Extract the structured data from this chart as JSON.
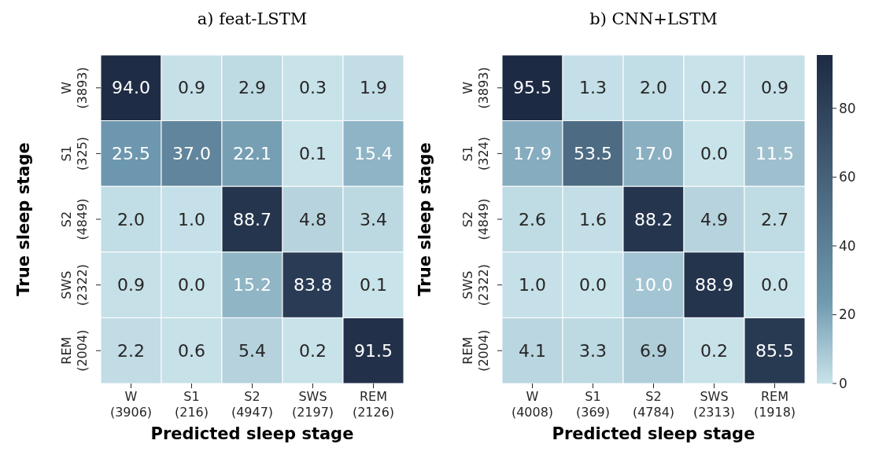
{
  "chart_data": [
    {
      "type": "heatmap",
      "title": "a) feat-LSTM",
      "xlabel": "Predicted sleep stage",
      "ylabel": "True sleep stage",
      "categories": [
        "W\n(3906)",
        "S1\n(216)",
        "S2\n(4947)",
        "SWS\n(2197)",
        "REM\n(2126)"
      ],
      "y_categories": [
        "W\n(3893)",
        "S1\n(325)",
        "S2\n(4849)",
        "SWS\n(2322)",
        "REM\n(2004)"
      ],
      "cells": [
        [
          94.0,
          0.9,
          2.9,
          0.3,
          1.9
        ],
        [
          25.5,
          37.0,
          22.1,
          0.1,
          15.4
        ],
        [
          2.0,
          1.0,
          88.7,
          4.8,
          3.4
        ],
        [
          0.9,
          0.0,
          15.2,
          83.8,
          0.1
        ],
        [
          2.2,
          0.6,
          5.4,
          0.2,
          91.5
        ]
      ],
      "cell_labels": [
        [
          "94.0",
          "0.9",
          "2.9",
          "0.3",
          "1.9"
        ],
        [
          "25.5",
          "37.0",
          "22.1",
          "0.1",
          "15.4"
        ],
        [
          "2.0",
          "1.0",
          "88.7",
          "4.8",
          "3.4"
        ],
        [
          "0.9",
          "0.0",
          "15.2",
          "83.8",
          "0.1"
        ],
        [
          "2.2",
          "0.6",
          "5.4",
          "0.2",
          "91.5"
        ]
      ],
      "data_labels": true
    },
    {
      "type": "heatmap",
      "title": "b) CNN+LSTM",
      "xlabel": "Predicted sleep stage",
      "ylabel": "True sleep stage",
      "categories": [
        "W\n(4008)",
        "S1\n(369)",
        "S2\n(4784)",
        "SWS\n(2313)",
        "REM\n(1918)"
      ],
      "y_categories": [
        "W\n(3893)",
        "S1\n(324)",
        "S2\n(4849)",
        "SWS\n(2322)",
        "REM\n(2004)"
      ],
      "cells": [
        [
          95.5,
          1.3,
          2.0,
          0.2,
          0.9
        ],
        [
          17.9,
          53.5,
          17.0,
          0.0,
          11.5
        ],
        [
          2.6,
          1.6,
          88.2,
          4.9,
          2.7
        ],
        [
          1.0,
          0.0,
          10.0,
          88.9,
          0.0
        ],
        [
          4.1,
          3.3,
          6.9,
          0.2,
          85.5
        ]
      ],
      "cell_labels": [
        [
          "95.5",
          "1.3",
          "2.0",
          "0.2",
          "0.9"
        ],
        [
          "17.9",
          "53.5",
          "17.0",
          "0.0",
          "11.5"
        ],
        [
          "2.6",
          "1.6",
          "88.2",
          "4.9",
          "2.7"
        ],
        [
          "1.0",
          "0.0",
          "10.0",
          "88.9",
          "0.0"
        ],
        [
          "4.1",
          "3.3",
          "6.9",
          "0.2",
          "85.5"
        ]
      ],
      "data_labels": true,
      "clim": [
        0,
        95.5
      ],
      "cticks": [
        0,
        20,
        40,
        60,
        80
      ]
    }
  ]
}
